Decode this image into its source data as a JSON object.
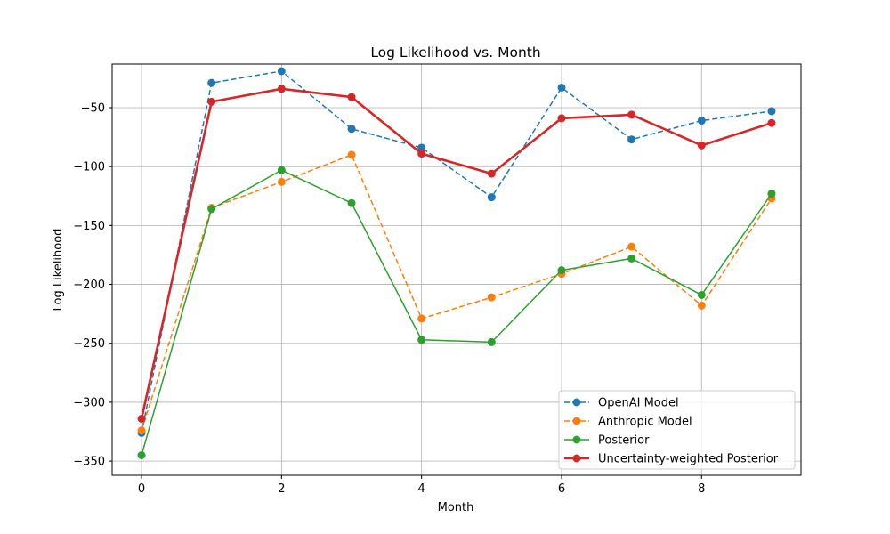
{
  "chart_data": {
    "type": "line",
    "title": "Log Likelihood vs. Month",
    "xlabel": "Month",
    "ylabel": "Log Likelihood",
    "xlim": [
      -0.42,
      9.42
    ],
    "ylim": [
      -362,
      -13
    ],
    "grid": true,
    "legend_position": "lower-right",
    "x_ticks": [
      0,
      2,
      4,
      6,
      8
    ],
    "x_tick_labels": [
      "0",
      "2",
      "4",
      "6",
      "8"
    ],
    "y_ticks": [
      -350,
      -300,
      -250,
      -200,
      -150,
      -100,
      -50
    ],
    "y_tick_labels": [
      "−350",
      "−300",
      "−250",
      "−200",
      "−150",
      "−100",
      "−50"
    ],
    "x": [
      0,
      1,
      2,
      3,
      4,
      5,
      6,
      7,
      8,
      9
    ],
    "series": [
      {
        "name": "OpenAI Model",
        "color": "#1f77b4",
        "line_style": "dashed",
        "line_width": 1.5,
        "values": [
          -326,
          -29,
          -19,
          -68,
          -84,
          -126,
          -33,
          -77,
          -61,
          -53
        ]
      },
      {
        "name": "Anthropic Model",
        "color": "#ff7f0e",
        "line_style": "dashed",
        "line_width": 1.5,
        "values": [
          -324,
          -135,
          -113,
          -90,
          -229,
          -211,
          -191,
          -168,
          -218,
          -127
        ]
      },
      {
        "name": "Posterior",
        "color": "#2ca02c",
        "line_style": "solid",
        "line_width": 1.5,
        "values": [
          -345,
          -136,
          -103,
          -131,
          -247,
          -249,
          -188,
          -178,
          -209,
          -123
        ]
      },
      {
        "name": "Uncertainty-weighted Posterior",
        "color": "#d62728",
        "line_style": "solid",
        "line_width": 2.6,
        "values": [
          -314,
          -45,
          -34,
          -41,
          -89,
          -106,
          -59,
          -56,
          -82,
          -63
        ]
      }
    ]
  }
}
